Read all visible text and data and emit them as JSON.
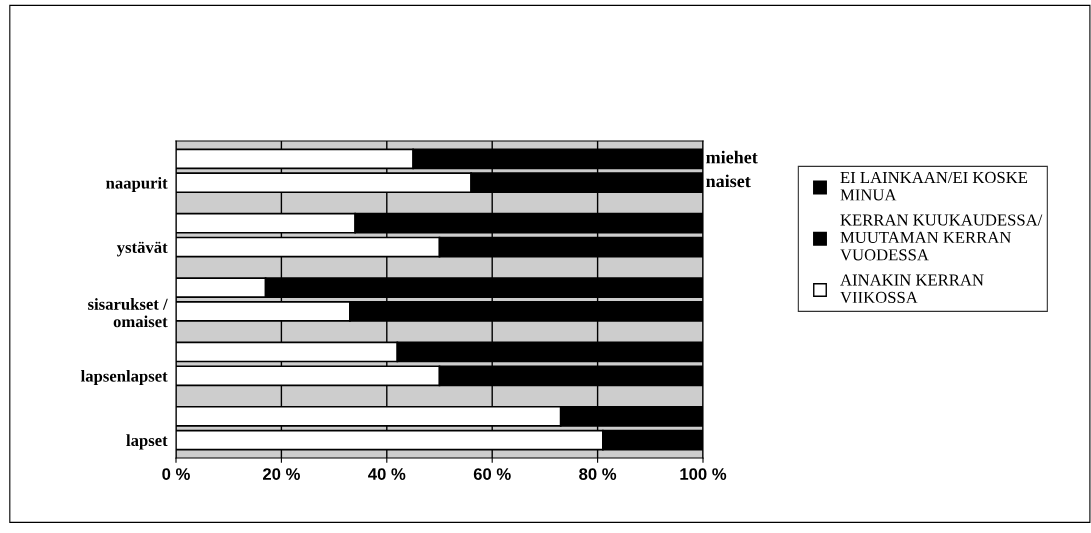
{
  "chart_data": {
    "type": "bar",
    "orientation": "horizontal",
    "stacked": true,
    "categories": [
      null,
      "naapurit",
      null,
      "ystävät",
      null,
      "sisarukset /\nomaiset",
      null,
      "lapsenlapset",
      null,
      "lapset"
    ],
    "series": [
      {
        "name": "AINAKIN KERRAN\nVIIKOSSA",
        "color": "#ffffff",
        "values": [
          45,
          56,
          34,
          50,
          17,
          33,
          42,
          50,
          73,
          81
        ]
      },
      {
        "name": "KERRAN KUUKAUDESSA/\nMUUTAMAN KERRAN\nVUODESSA",
        "color": "#000000",
        "values": [
          55,
          44,
          66,
          50,
          83,
          67,
          58,
          50,
          27,
          19
        ]
      },
      {
        "name": "EI LAINKAAN/EI KOSKE\nMINUA",
        "color": "#000000",
        "values": [
          null,
          null,
          null,
          null,
          null,
          null,
          null,
          null,
          null,
          null
        ]
      }
    ],
    "xlim": [
      0,
      100
    ],
    "xticks": [
      {
        "value": 0,
        "label": "0 %"
      },
      {
        "value": 20,
        "label": "20 %"
      },
      {
        "value": 40,
        "label": "40 %"
      },
      {
        "value": 60,
        "label": "60 %"
      },
      {
        "value": 80,
        "label": "80 %"
      },
      {
        "value": 100,
        "label": "100 %"
      }
    ],
    "grid": "x",
    "legend": "right",
    "annotations": [
      "miehet",
      "naiset"
    ]
  }
}
